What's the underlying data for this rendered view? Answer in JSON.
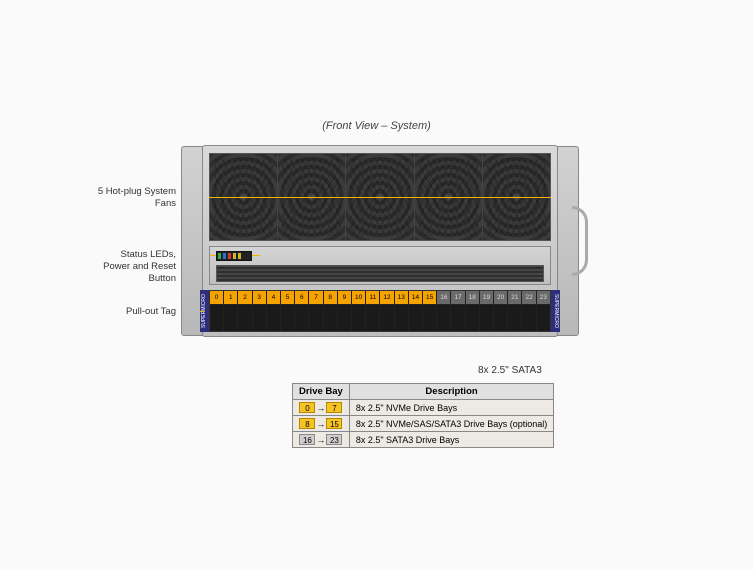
{
  "title": "(Front View – System)",
  "callouts": {
    "fans": "5 Hot-plug System Fans",
    "status": "Status LEDs, Power and Reset Button",
    "tag": "Pull-out Tag"
  },
  "side_labels": {
    "left": "SUPERMICRO",
    "right": "SUPERMICRO"
  },
  "drive_bays": {
    "count": 24,
    "groups": [
      {
        "start": 0,
        "end": 7,
        "color": "o"
      },
      {
        "start": 8,
        "end": 15,
        "color": "o"
      },
      {
        "start": 16,
        "end": 23,
        "color": "g"
      }
    ]
  },
  "subtitle": "8x 2.5\" SATA3",
  "legend": {
    "headers": [
      "Drive Bay",
      "Description"
    ],
    "rows": [
      {
        "from": "0",
        "to": "7",
        "from_cls": "o",
        "to_cls": "o",
        "desc": "8x 2.5\" NVMe Drive Bays"
      },
      {
        "from": "8",
        "to": "15",
        "from_cls": "o",
        "to_cls": "o",
        "desc": "8x 2.5\" NVMe/SAS/SATA3 Drive Bays (optional)"
      },
      {
        "from": "16",
        "to": "23",
        "from_cls": "g",
        "to_cls": "g",
        "desc": "8x 2.5\" SATA3 Drive Bays"
      }
    ]
  },
  "led_colors": [
    "#2da84a",
    "#2d6fd4",
    "#d43a2d",
    "#d4b22d",
    "#d4b22d"
  ],
  "accent": "#f5b400"
}
